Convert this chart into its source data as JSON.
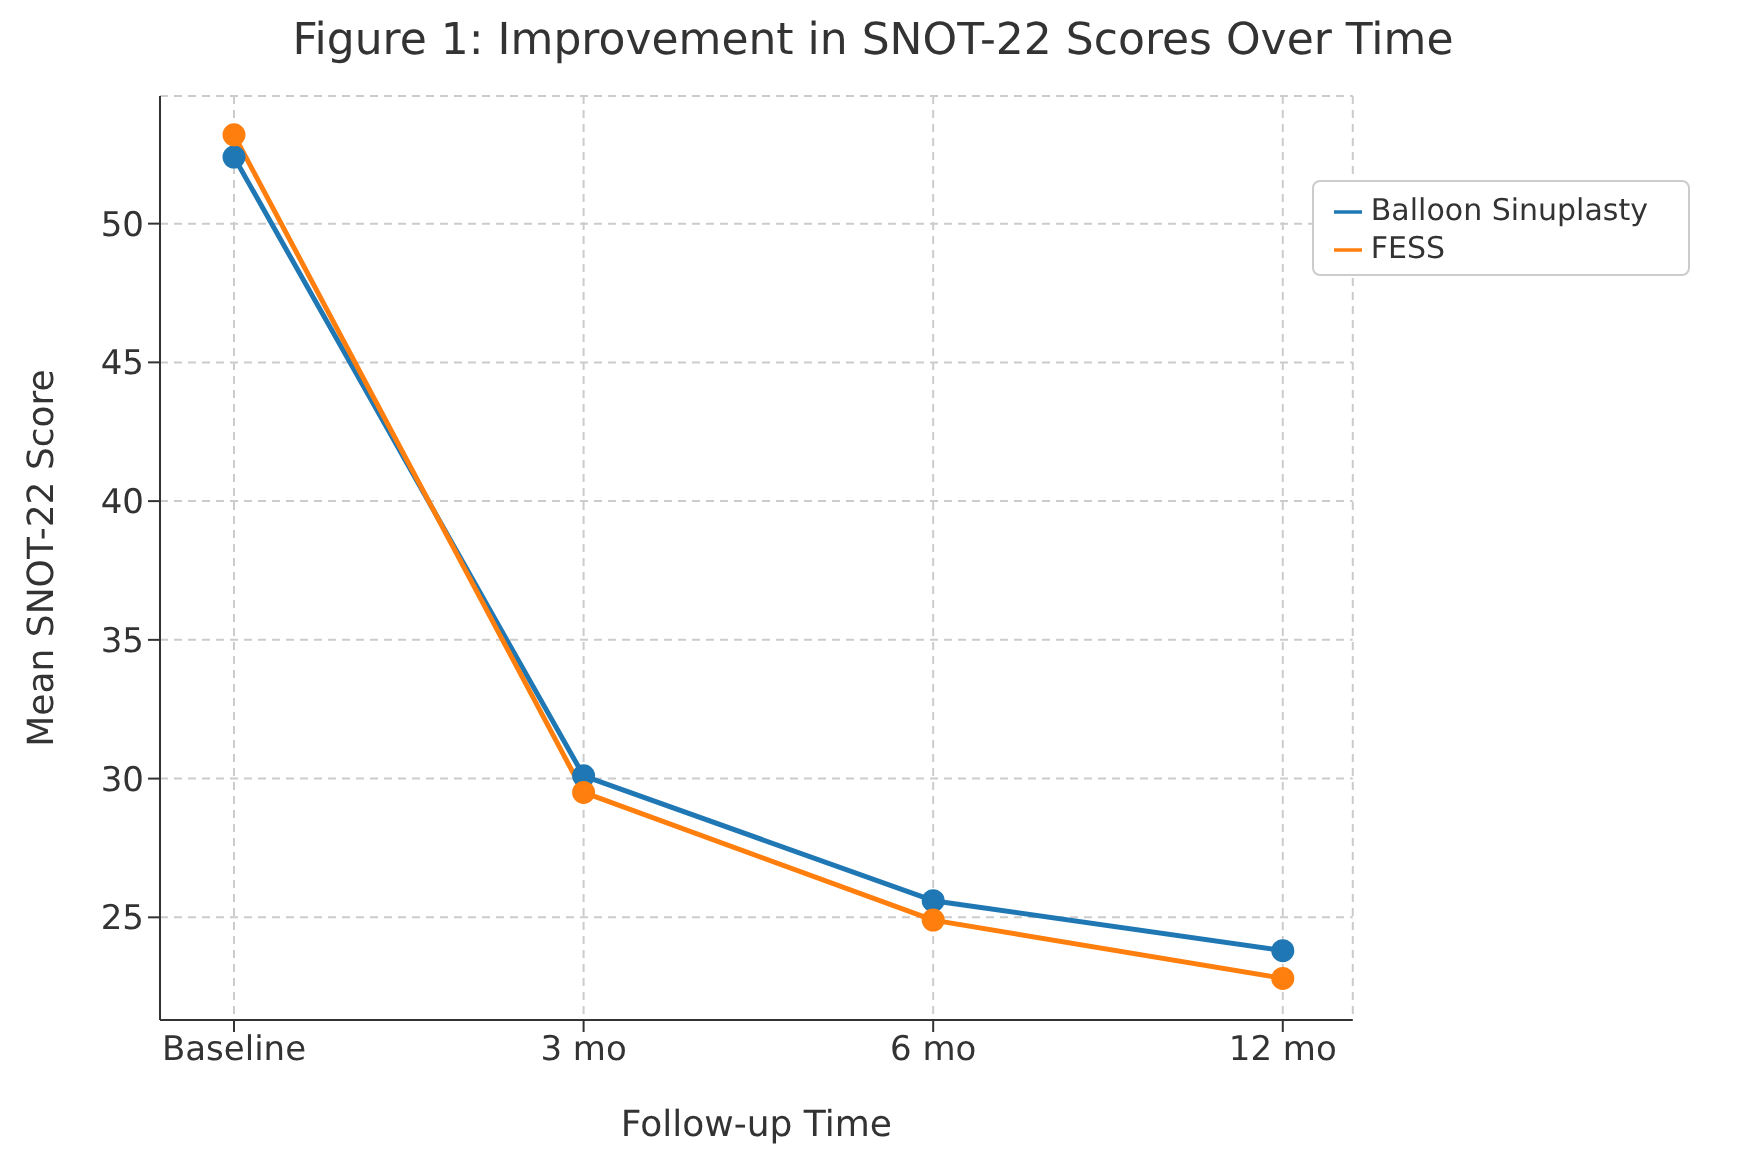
{
  "chart_data": {
    "type": "line",
    "title": "Figure 1: Improvement in SNOT-22 Scores Over Time",
    "xlabel": "Follow-up Time",
    "ylabel": "Mean SNOT-22 Score",
    "categories": [
      "Baseline",
      "3 mo",
      "6 mo",
      "12 mo"
    ],
    "series": [
      {
        "name": "Balloon Sinuplasty",
        "color": "#1f77b4",
        "values": [
          52.4,
          30.1,
          25.6,
          23.8
        ]
      },
      {
        "name": "FESS",
        "color": "#ff7f0e",
        "values": [
          53.2,
          29.5,
          24.9,
          22.8
        ]
      }
    ],
    "ylim": [
      21.3,
      54.6
    ],
    "yticks": [
      25,
      30,
      35,
      40,
      45,
      50
    ],
    "grid": true,
    "legend": "top right",
    "marker": "circle",
    "line_style": "solid"
  }
}
